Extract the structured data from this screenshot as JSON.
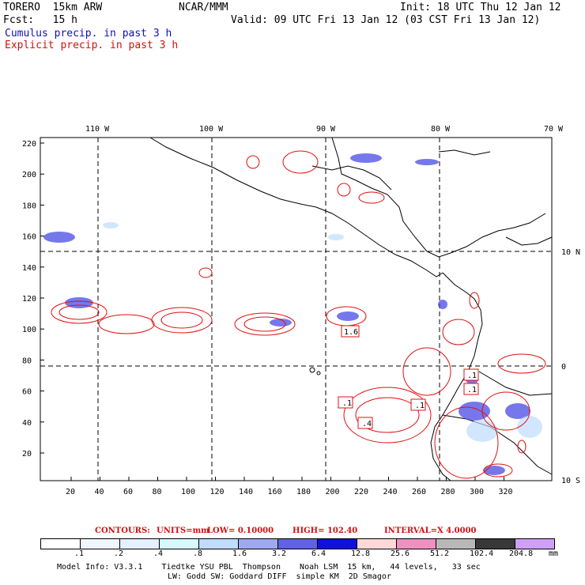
{
  "header": {
    "model": "TORERO  15km ARW",
    "org": "NCAR/MMM",
    "init": "Init: 18 UTC Thu 12 Jan 12",
    "fcst": "Fcst:   15 h",
    "valid": "Valid: 09 UTC Fri 13 Jan 12 (03 CST Fri 13 Jan 12)",
    "cumulus": "Cumulus precip. in past 3 h",
    "explicit": "Explicit precip. in past 3 h"
  },
  "axes": {
    "lon_labels": [
      "110 W",
      "100 W",
      "90 W",
      "80 W",
      "70 W"
    ],
    "lat_labels": [
      "10 N",
      "0",
      "10 S"
    ],
    "y_ticks": [
      "220",
      "200",
      "180",
      "160",
      "140",
      "120",
      "100",
      "80",
      "60",
      "40",
      "20"
    ],
    "x_ticks": [
      "20",
      "40",
      "60",
      "80",
      "100",
      "120",
      "140",
      "160",
      "180",
      "200",
      "220",
      "240",
      "260",
      "280",
      "300",
      "320"
    ]
  },
  "contour_labels": [
    "1.6",
    ".1",
    ".1",
    ".4",
    ".1",
    ".1"
  ],
  "contours_line": {
    "label": "CONTOURS:",
    "units": "UNITS=mm",
    "low": "LOW= 0.10000",
    "high": "HIGH= 102.40",
    "interval": "INTERVAL=X  4.0000"
  },
  "colorbar": {
    "colors": [
      "#ffffff",
      "#f0f6ff",
      "#e4f0ff",
      "#d8f8ff",
      "#c0dcff",
      "#a0a8f0",
      "#6060e8",
      "#1010e0",
      "#ffd8d8",
      "#f090c0",
      "#b8b8b8",
      "#383838",
      "#d0a0f8"
    ],
    "labels": [
      ".1",
      ".2",
      ".4",
      ".8",
      "1.6",
      "3.2",
      "6.4",
      "12.8",
      "25.6",
      "51.2",
      "102.4",
      "204.8",
      "mm"
    ]
  },
  "footer": {
    "line1": "Model Info: V3.3.1    Tiedtke YSU PBL  Thompson    Noah LSM  15 km,   44 levels,   33 sec",
    "line2": "LW: Godd SW: Goddard DIFF  simple KM  2D Smagor"
  }
}
